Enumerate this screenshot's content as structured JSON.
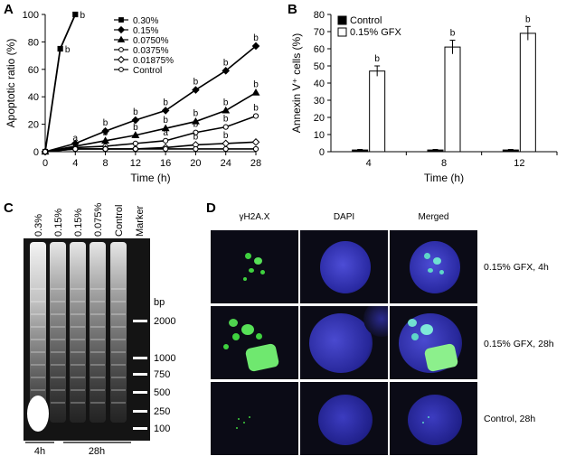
{
  "panels": {
    "a": "A",
    "b": "B",
    "c": "C",
    "d": "D"
  },
  "chart_data": [
    {
      "type": "line",
      "xlabel": "Time (h)",
      "ylabel": "Apoptotic ratio (%)",
      "xlim": [
        0,
        28
      ],
      "ylim": [
        0,
        100
      ],
      "xticks": [
        "0",
        "4",
        "8",
        "12",
        "16",
        "20",
        "24",
        "28"
      ],
      "yticks": [
        "0",
        "20",
        "40",
        "60",
        "80",
        "100"
      ],
      "legend_position": "top-right",
      "series": [
        {
          "name": "0.30%",
          "marker": "filled-square",
          "x": [
            0,
            2,
            4
          ],
          "y": [
            0,
            75,
            100
          ],
          "labels": [
            "",
            "b",
            "b"
          ]
        },
        {
          "name": "0.15%",
          "marker": "filled-diamond",
          "x": [
            0,
            4,
            8,
            12,
            16,
            20,
            24,
            28
          ],
          "y": [
            0,
            6,
            15,
            23,
            30,
            45,
            59,
            77
          ],
          "labels": [
            "",
            "",
            "b",
            "b",
            "b",
            "b",
            "b",
            "b"
          ]
        },
        {
          "name": "0.0750%",
          "marker": "filled-triangle",
          "x": [
            0,
            4,
            8,
            12,
            16,
            20,
            24,
            28
          ],
          "y": [
            0,
            4,
            8,
            12,
            17,
            22,
            30,
            43
          ],
          "labels": [
            "",
            "a",
            "b",
            "b",
            "b",
            "b",
            "b",
            "b"
          ]
        },
        {
          "name": "0.0375%",
          "marker": "open-circle",
          "x": [
            0,
            4,
            8,
            12,
            16,
            20,
            24,
            28
          ],
          "y": [
            0,
            3,
            4,
            6,
            8,
            14,
            18,
            26
          ],
          "labels": [
            "",
            "",
            "",
            "a",
            "a",
            "b",
            "b",
            "b"
          ]
        },
        {
          "name": "0.01875%",
          "marker": "open-diamond",
          "x": [
            0,
            4,
            8,
            12,
            16,
            20,
            24,
            28
          ],
          "y": [
            0,
            2,
            2,
            2,
            3,
            5,
            6,
            7
          ],
          "labels": [
            "",
            "",
            "",
            "",
            "",
            "b",
            "b",
            ""
          ]
        },
        {
          "name": "Control",
          "marker": "open-circle",
          "x": [
            0,
            4,
            8,
            12,
            16,
            20,
            24,
            28
          ],
          "y": [
            0,
            2,
            2,
            2,
            2,
            2,
            2,
            2
          ],
          "labels": []
        }
      ]
    },
    {
      "type": "bar",
      "xlabel": "Time (h)",
      "ylabel": "Annexin V⁺ cells (%)",
      "ylim": [
        0,
        80
      ],
      "yticks": [
        "0",
        "10",
        "20",
        "30",
        "40",
        "50",
        "60",
        "70",
        "80"
      ],
      "categories": [
        "4",
        "8",
        "12"
      ],
      "legend_position": "top-left",
      "series": [
        {
          "name": "Control",
          "fill": "#000000",
          "values": [
            1,
            1,
            1
          ],
          "errors": [
            0.3,
            0.3,
            0.3
          ]
        },
        {
          "name": "0.15% GFX",
          "fill": "#ffffff",
          "values": [
            47,
            61,
            69
          ],
          "errors": [
            3,
            4,
            4
          ],
          "labels": [
            "b",
            "b",
            "b"
          ]
        }
      ]
    }
  ],
  "gel": {
    "lanes": [
      "0.3%",
      "0.15%",
      "0.15%",
      "0.075%",
      "Control",
      "Marker"
    ],
    "bp_unit": "bp",
    "markers": [
      "2000",
      "1000",
      "750",
      "500",
      "250",
      "100"
    ],
    "group_4h": "4h",
    "group_28h": "28h"
  },
  "microscopy": {
    "columns": [
      "γH2A.X",
      "DAPI",
      "Merged"
    ],
    "rows": [
      "0.15% GFX, 4h",
      "0.15% GFX, 28h",
      "Control, 28h"
    ]
  }
}
